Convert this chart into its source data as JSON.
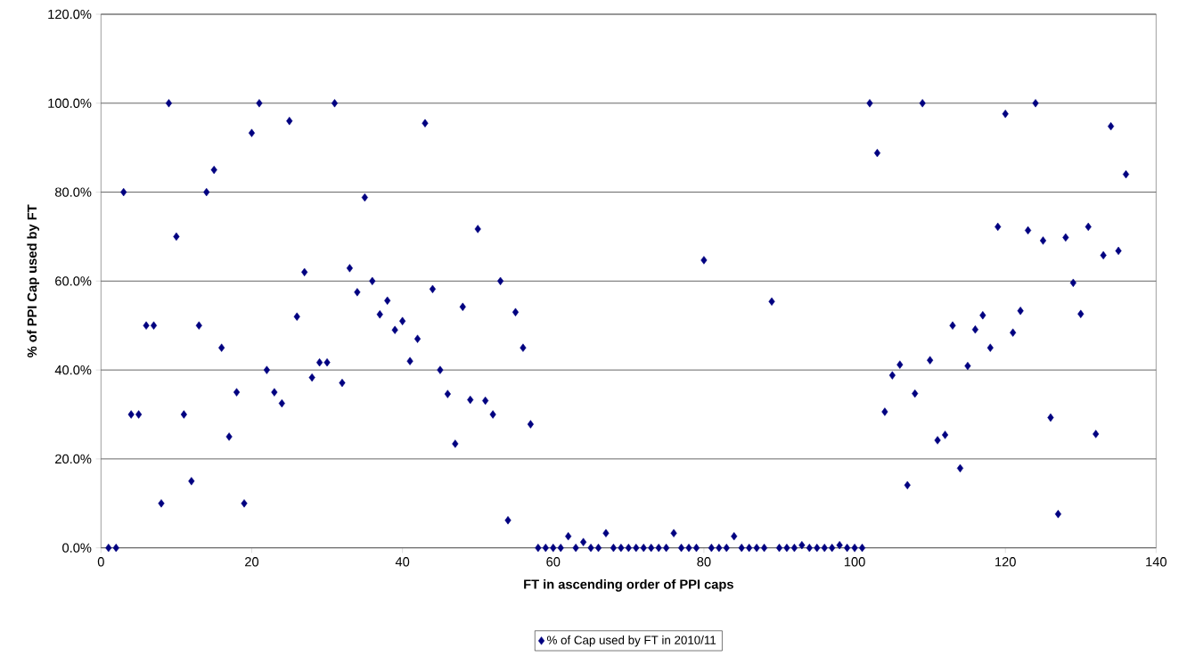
{
  "chart_data": {
    "type": "scatter",
    "xlabel": "FT in ascending order of PPI caps",
    "ylabel": "% of PPI Cap used by FT",
    "x": [
      1,
      2,
      3,
      4,
      5,
      6,
      7,
      8,
      9,
      10,
      11,
      12,
      13,
      14,
      15,
      16,
      17,
      18,
      19,
      20,
      21,
      22,
      23,
      24,
      25,
      26,
      27,
      28,
      29,
      30,
      31,
      32,
      33,
      34,
      35,
      36,
      37,
      38,
      39,
      40,
      41,
      42,
      43,
      44,
      45,
      46,
      47,
      48,
      49,
      50,
      51,
      52,
      53,
      54,
      55,
      56,
      57,
      58,
      59,
      60,
      61,
      62,
      63,
      64,
      65,
      66,
      67,
      68,
      69,
      70,
      71,
      72,
      73,
      74,
      75,
      76,
      77,
      78,
      79,
      80,
      81,
      82,
      83,
      84,
      85,
      86,
      87,
      88,
      89,
      90,
      91,
      92,
      93,
      94,
      95,
      96,
      97,
      98,
      99,
      100,
      101,
      102,
      103,
      104,
      105,
      106,
      107,
      108,
      109,
      110,
      111,
      112,
      113,
      114,
      115,
      116,
      117,
      118,
      119,
      120,
      121,
      122,
      123,
      124,
      125,
      126,
      127,
      128,
      129,
      130,
      131,
      132,
      133,
      134,
      135,
      136
    ],
    "series": [
      {
        "name": "% of Cap used by FT in 2010/11",
        "color": "#000080",
        "values": [
          0,
          0,
          80,
          30,
          30,
          50,
          50,
          10,
          100,
          70,
          30,
          15,
          50,
          80,
          85,
          45,
          25,
          35,
          10,
          93.3,
          100,
          40,
          35,
          32.5,
          96,
          52,
          62,
          38.3,
          41.7,
          41.7,
          100,
          37.1,
          62.9,
          57.5,
          78.8,
          60,
          52.5,
          55.6,
          49,
          51,
          42,
          47,
          95.5,
          58.2,
          40,
          34.6,
          23.4,
          54.2,
          33.3,
          71.7,
          33.1,
          30,
          60,
          6.2,
          53,
          45,
          27.8,
          0,
          0,
          0,
          0,
          2.6,
          0,
          1.3,
          0,
          0,
          3.3,
          0,
          0,
          0,
          0,
          0,
          0,
          0,
          0,
          3.3,
          0,
          0,
          0,
          64.7,
          0,
          0,
          0,
          2.6,
          0,
          0,
          0,
          0,
          55.4,
          0,
          0,
          0,
          0.6,
          0,
          0,
          0,
          0,
          0.6,
          0,
          0,
          0,
          100,
          88.8,
          30.6,
          38.8,
          41.2,
          14.1,
          34.7,
          100,
          42.2,
          24.2,
          25.4,
          50,
          17.9,
          40.9,
          49.1,
          52.3,
          45,
          72.2,
          97.6,
          48.4,
          53.3,
          71.4,
          100,
          69.1,
          29.3,
          7.6,
          69.8,
          59.6,
          52.6,
          72.2,
          25.6,
          65.8,
          94.8,
          66.8,
          84
        ]
      }
    ],
    "xlim": [
      0,
      140
    ],
    "ylim": [
      0,
      120
    ],
    "xticks": [
      0,
      20,
      40,
      60,
      80,
      100,
      120,
      140
    ],
    "yticks": [
      {
        "value": 0,
        "label": "0.0%"
      },
      {
        "value": 20,
        "label": "20.0%"
      },
      {
        "value": 40,
        "label": "40.0%"
      },
      {
        "value": 60,
        "label": "60.0%"
      },
      {
        "value": 80,
        "label": "80.0%"
      },
      {
        "value": 100,
        "label": "100.0%"
      },
      {
        "value": 120,
        "label": "120.0%"
      }
    ],
    "grid": "y",
    "legend": "bottom",
    "marker": "diamond"
  }
}
